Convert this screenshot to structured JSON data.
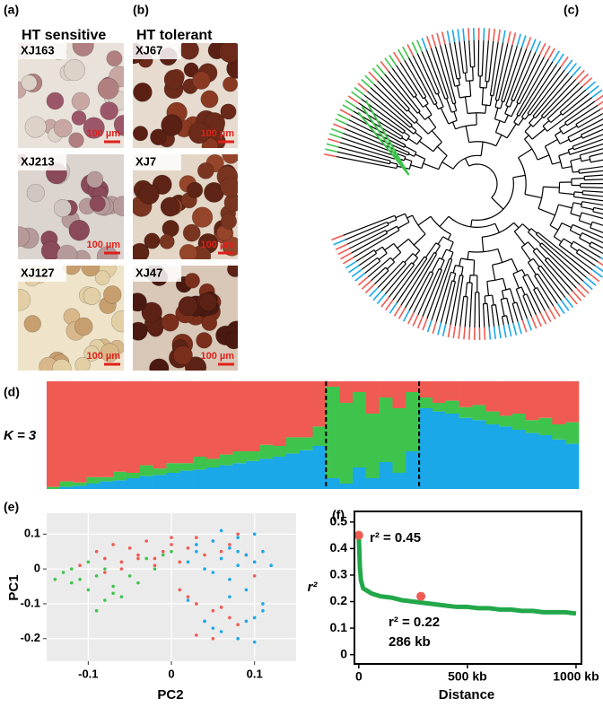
{
  "panels": [
    {
      "label": "(a)",
      "title": "HT sensitive",
      "images": [
        {
          "sample": "XJ163",
          "scale_bar": "100 µm"
        },
        {
          "sample": "XJ213",
          "scale_bar": "100 µm"
        },
        {
          "sample": "XJ127",
          "scale_bar": "100 µm"
        }
      ]
    },
    {
      "label": "(b)",
      "title": "HT tolerant",
      "images": [
        {
          "sample": "XJ67",
          "scale_bar": "100 µm"
        },
        {
          "sample": "XJ7",
          "scale_bar": "100 µm"
        },
        {
          "sample": "XJ47",
          "scale_bar": "100 µm"
        }
      ]
    },
    {
      "label": "(c)"
    }
  ],
  "chart_data": [
    {
      "type": "stacked_bar",
      "label": "(d)",
      "annotation": "K = 3",
      "ylim": [
        0,
        1
      ],
      "series": [
        {
          "color": "#1aa8e8",
          "values": [
            0,
            0.02,
            0.03,
            0.05,
            0.07,
            0.08,
            0.1,
            0.12,
            0.13,
            0.15,
            0.17,
            0.18,
            0.2,
            0.22,
            0.24,
            0.26,
            0.28,
            0.3,
            0.33,
            0.36,
            0.4,
            0.1,
            0.05,
            0.2,
            0.1,
            0.25,
            0.15,
            0.35,
            0.75,
            0.72,
            0.7,
            0.66,
            0.64,
            0.6,
            0.58,
            0.55,
            0.52,
            0.5,
            0.46,
            0.42
          ]
        },
        {
          "color": "#3ec44c",
          "values": [
            0.02,
            0.05,
            0.03,
            0.06,
            0.04,
            0.08,
            0.05,
            0.1,
            0.06,
            0.09,
            0.07,
            0.12,
            0.08,
            0.1,
            0.11,
            0.09,
            0.13,
            0.1,
            0.15,
            0.12,
            0.18,
            0.85,
            0.75,
            0.7,
            0.6,
            0.6,
            0.6,
            0.55,
            0.1,
            0.08,
            0.12,
            0.1,
            0.14,
            0.12,
            0.1,
            0.15,
            0.12,
            0.16,
            0.14,
            0.2
          ]
        },
        {
          "color": "#ef5b52",
          "values": [
            0.98,
            0.93,
            0.94,
            0.89,
            0.89,
            0.84,
            0.85,
            0.78,
            0.81,
            0.76,
            0.76,
            0.7,
            0.72,
            0.68,
            0.65,
            0.65,
            0.59,
            0.6,
            0.52,
            0.52,
            0.42,
            0.05,
            0.2,
            0.1,
            0.3,
            0.15,
            0.25,
            0.1,
            0.15,
            0.2,
            0.18,
            0.24,
            0.22,
            0.28,
            0.32,
            0.3,
            0.36,
            0.34,
            0.4,
            0.38
          ]
        }
      ]
    },
    {
      "type": "scatter",
      "label": "(e)",
      "x_label": "PC2",
      "y_label": "PC1",
      "xlim": [
        -0.15,
        0.15
      ],
      "ylim": [
        -0.265,
        0.16
      ],
      "xticks": [
        -0.1,
        0,
        0.1
      ],
      "yticks": [
        -0.2,
        -0.1,
        0,
        0.1
      ],
      "grid": true,
      "background": "#ebebeb",
      "series": [
        {
          "color": "#3ec44c",
          "x": [
            -0.14,
            -0.13,
            -0.12,
            -0.12,
            -0.11,
            -0.1,
            -0.1,
            -0.09,
            -0.08,
            -0.08,
            -0.07,
            -0.06,
            -0.05,
            -0.04,
            -0.03,
            -0.02,
            -0.01,
            0,
            -0.09,
            -0.07
          ],
          "values": [
            -0.03,
            -0.01,
            -0.04,
            0,
            -0.03,
            -0.06,
            0.02,
            -0.02,
            -0.09,
            0,
            -0.05,
            -0.08,
            -0.02,
            -0.04,
            0.03,
            0,
            0.04,
            0.05,
            -0.12,
            -0.07
          ]
        },
        {
          "color": "#ef5b52",
          "x": [
            -0.11,
            -0.09,
            -0.08,
            -0.07,
            -0.06,
            -0.05,
            -0.04,
            -0.03,
            -0.02,
            -0.01,
            0,
            0.01,
            0.02,
            0.03,
            0.04,
            0.05,
            0.06,
            0.07,
            0.08,
            0.09,
            -0.06,
            -0.04,
            -0.02,
            0.01,
            0.03,
            0.05,
            0.02,
            0.04,
            0.06,
            0.08,
            0.03,
            0.05,
            0.07,
            0.1,
            -0.08,
            0
          ],
          "values": [
            0.01,
            0.05,
            0.03,
            0.07,
            0.02,
            0.06,
            0.04,
            0.08,
            0.03,
            0.05,
            0.07,
            0.02,
            0.06,
            0.09,
            0.04,
            0.08,
            0.05,
            0.07,
            0.1,
            0.04,
            0,
            0.03,
            0.01,
            -0.06,
            -0.1,
            -0.12,
            -0.08,
            -0.15,
            -0.11,
            -0.16,
            -0.19,
            -0.2,
            -0.14,
            -0.02,
            -0.01,
            0.09
          ]
        },
        {
          "color": "#1aa8e8",
          "x": [
            0.02,
            0.03,
            0.04,
            0.05,
            0.05,
            0.06,
            0.06,
            0.07,
            0.07,
            0.08,
            0.08,
            0.09,
            0.09,
            0.1,
            0.1,
            0.11,
            0.11,
            0.12,
            0.04,
            0.06,
            0.08,
            0.1,
            0.03,
            0.07,
            0.09,
            0.05,
            0.11,
            0.1,
            0.08,
            0.02
          ],
          "values": [
            0.02,
            0.05,
            0,
            0.08,
            -0.01,
            0.03,
            0.11,
            0.06,
            -0.03,
            0.01,
            0.09,
            0.04,
            -0.06,
            0.02,
            0.1,
            0.05,
            -0.12,
            0.01,
            -0.15,
            -0.18,
            -0.2,
            -0.21,
            0.07,
            -0.08,
            -0.15,
            -0.17,
            -0.1,
            -0.14,
            0.05,
            -0.09
          ]
        }
      ]
    },
    {
      "type": "line",
      "label": "(f)",
      "x_label": "Distance",
      "y_label": "r²",
      "xlim": [
        -20,
        1025
      ],
      "ylim": [
        -0.035,
        0.54
      ],
      "xticks": [
        0,
        {
          "value": 500,
          "label": "500 kb"
        },
        {
          "value": 1000,
          "label": "1000 kb"
        }
      ],
      "yticks": [
        0,
        0.1,
        0.2,
        0.3,
        0.4,
        0.5
      ],
      "series": [
        {
          "color": "#22a84a",
          "x": [
            0,
            5,
            10,
            20,
            40,
            60,
            80,
            100,
            150,
            200,
            250,
            300,
            350,
            400,
            450,
            500,
            550,
            600,
            650,
            700,
            750,
            800,
            850,
            900,
            950,
            1000
          ],
          "values": [
            0.45,
            0.33,
            0.28,
            0.25,
            0.24,
            0.23,
            0.225,
            0.22,
            0.215,
            0.205,
            0.2,
            0.195,
            0.19,
            0.185,
            0.18,
            0.18,
            0.175,
            0.175,
            0.17,
            0.17,
            0.165,
            0.165,
            0.16,
            0.16,
            0.16,
            0.155
          ]
        }
      ],
      "highlights": {
        "color": "#ef5b52",
        "x": [
          0,
          286
        ],
        "values": [
          0.45,
          0.22
        ]
      },
      "annotations": [
        "r² = 0.45",
        "r² = 0.22",
        "286 kb"
      ]
    }
  ]
}
